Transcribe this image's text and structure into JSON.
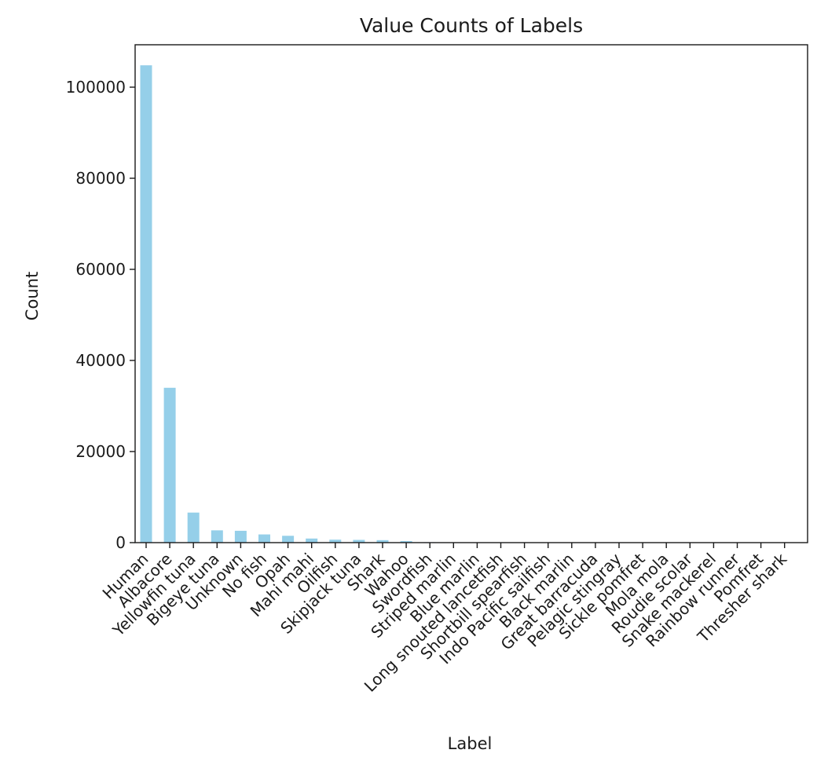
{
  "chart_data": {
    "type": "bar",
    "title": "Value Counts of Labels",
    "xlabel": "Label",
    "ylabel": "Count",
    "ylim": [
      0,
      110000
    ],
    "yticks": [
      0,
      20000,
      40000,
      60000,
      80000,
      100000
    ],
    "grid": false,
    "bar_color": "#95cfe9",
    "categories": [
      "Human",
      "Albacore",
      "Yellowfin tuna",
      "Bigeye tuna",
      "Unknown",
      "No fish",
      "Opah",
      "Mahi mahi",
      "Oilfish",
      "Skipjack tuna",
      "Shark",
      "Wahoo",
      "Swordfish",
      "Striped marlin",
      "Blue marlin",
      "Long snouted lancetfish",
      "Shortbill spearfish",
      "Indo Pacific sailfish",
      "Black marlin",
      "Great barracuda",
      "Pelagic stingray",
      "Sickle pomfret",
      "Mola mola",
      "Roudie scolar",
      "Snake mackerel",
      "Rainbow runner",
      "Pomfret",
      "Thresher shark"
    ],
    "values": [
      104800,
      34000,
      6600,
      2700,
      2600,
      1800,
      1500,
      900,
      650,
      600,
      550,
      350,
      100,
      60,
      40,
      30,
      20,
      15,
      10,
      8,
      6,
      5,
      4,
      3,
      3,
      2,
      1,
      1
    ]
  }
}
